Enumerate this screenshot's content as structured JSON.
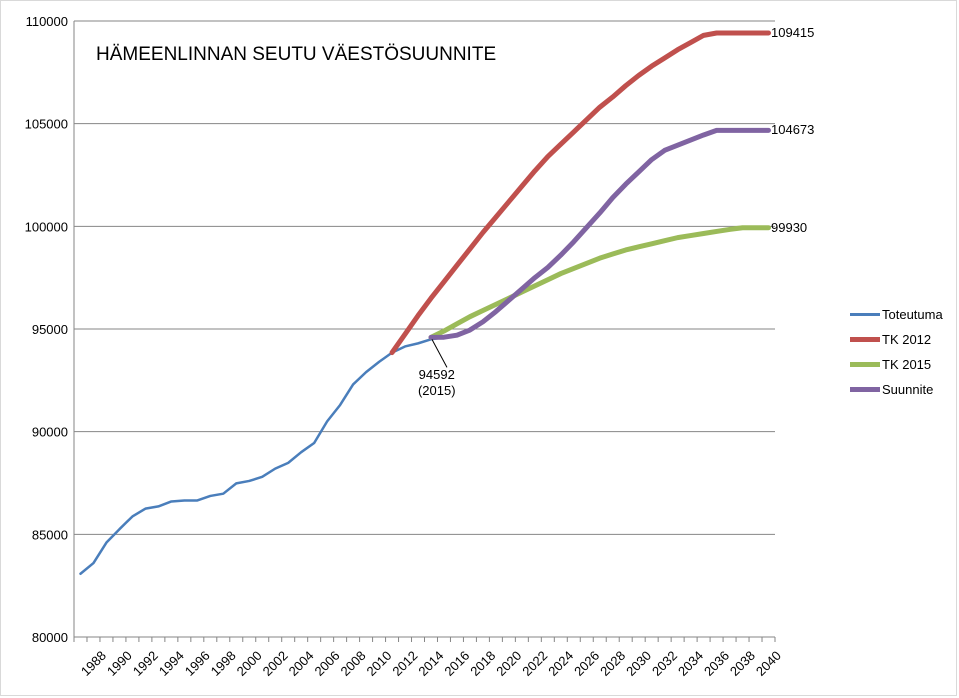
{
  "chart_data": {
    "type": "line",
    "title": "HÄMEENLINNAN SEUTU VÄESTÖSUUNNITE",
    "xlabel": "",
    "ylabel": "",
    "ylim": [
      80000,
      110000
    ],
    "yticks": [
      80000,
      85000,
      90000,
      95000,
      100000,
      105000,
      110000
    ],
    "xlim": [
      1986.5,
      2040.5
    ],
    "xticks": [
      1988,
      1990,
      1992,
      1994,
      1996,
      1998,
      2000,
      2002,
      2004,
      2006,
      2008,
      2010,
      2012,
      2014,
      2016,
      2018,
      2020,
      2022,
      2024,
      2026,
      2028,
      2030,
      2032,
      2034,
      2036,
      2038,
      2040
    ],
    "grid": "horizontal",
    "legend_position": "right",
    "series": [
      {
        "name": "Toteutuma",
        "color": "#4a7ebb",
        "x": [
          1987,
          1988,
          1989,
          1990,
          1991,
          1992,
          1993,
          1994,
          1995,
          1996,
          1997,
          1998,
          1999,
          2000,
          2001,
          2002,
          2003,
          2004,
          2005,
          2006,
          2007,
          2008,
          2009,
          2010,
          2011,
          2012,
          2013,
          2014,
          2015
        ],
        "values": [
          83080,
          83600,
          84600,
          85250,
          85870,
          86250,
          86360,
          86600,
          86650,
          86650,
          86870,
          86980,
          87480,
          87600,
          87800,
          88200,
          88480,
          89000,
          89450,
          90500,
          91300,
          92300,
          92900,
          93400,
          93850,
          94150,
          94300,
          94500,
          94592
        ]
      },
      {
        "name": "TK 2012",
        "color": "#c0504d",
        "x": [
          2011,
          2012,
          2013,
          2014,
          2015,
          2016,
          2017,
          2018,
          2019,
          2020,
          2021,
          2022,
          2023,
          2024,
          2025,
          2026,
          2027,
          2028,
          2029,
          2030,
          2031,
          2032,
          2033,
          2034,
          2035,
          2036,
          2037,
          2038,
          2039,
          2040
        ],
        "values": [
          93850,
          94750,
          95650,
          96500,
          97300,
          98100,
          98900,
          99700,
          100450,
          101200,
          101950,
          102700,
          103400,
          104000,
          104600,
          105200,
          105800,
          106300,
          106850,
          107350,
          107800,
          108200,
          108600,
          108950,
          109300,
          109415,
          109415,
          109415,
          109415,
          109415
        ]
      },
      {
        "name": "TK 2015",
        "color": "#9bbb59",
        "x": [
          2014,
          2015,
          2016,
          2017,
          2018,
          2019,
          2020,
          2021,
          2022,
          2023,
          2024,
          2025,
          2026,
          2027,
          2028,
          2029,
          2030,
          2031,
          2032,
          2033,
          2034,
          2035,
          2036,
          2037,
          2038,
          2039,
          2040
        ],
        "values": [
          94592,
          94900,
          95250,
          95600,
          95900,
          96200,
          96500,
          96800,
          97100,
          97400,
          97700,
          97950,
          98200,
          98450,
          98650,
          98850,
          99000,
          99150,
          99300,
          99450,
          99550,
          99650,
          99750,
          99850,
          99930,
          99930,
          99930
        ]
      },
      {
        "name": "Suunnite",
        "color": "#8064a2",
        "x": [
          2014,
          2015,
          2016,
          2017,
          2018,
          2019,
          2020,
          2021,
          2022,
          2023,
          2024,
          2025,
          2026,
          2027,
          2028,
          2029,
          2030,
          2031,
          2032,
          2033,
          2034,
          2035,
          2036,
          2037,
          2038,
          2039,
          2040
        ],
        "values": [
          94592,
          94600,
          94700,
          94950,
          95350,
          95850,
          96400,
          96950,
          97500,
          98000,
          98600,
          99250,
          99950,
          100650,
          101400,
          102050,
          102650,
          103250,
          103700,
          103950,
          104200,
          104450,
          104673,
          104673,
          104673,
          104673,
          104673
        ]
      }
    ],
    "annotations": [
      {
        "text": "94592",
        "text2": "(2015)",
        "x": 2015,
        "y": 94592
      },
      {
        "text": "109415",
        "x": 2040,
        "y": 109415
      },
      {
        "text": "104673",
        "x": 2040,
        "y": 104673
      },
      {
        "text": "99930",
        "x": 2040,
        "y": 99930
      }
    ]
  }
}
